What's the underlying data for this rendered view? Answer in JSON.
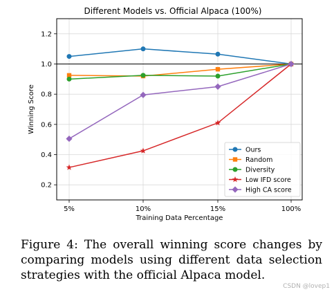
{
  "chart_data": {
    "type": "line",
    "title": "Different Models vs. Official Alpaca (100%)",
    "xlabel": "Training Data Percentage",
    "ylabel": "Winning Score",
    "categories": [
      "5%",
      "10%",
      "15%",
      "100%"
    ],
    "ylim": [
      0.1,
      1.3
    ],
    "yticks": [
      "0.2",
      "0.4",
      "0.6",
      "0.8",
      "1.0",
      "1.2"
    ],
    "yticks_values": [
      0.2,
      0.4,
      0.6,
      0.8,
      1.0,
      1.2
    ],
    "reference_line": 1.0,
    "grid": true,
    "legend_position": "lower-right",
    "series": [
      {
        "name": "Ours",
        "color": "#1f77b4",
        "marker": "circle",
        "values": [
          1.05,
          1.1,
          1.065,
          1.0
        ]
      },
      {
        "name": "Random",
        "color": "#ff7f0e",
        "marker": "square",
        "values": [
          0.925,
          0.92,
          0.965,
          1.0
        ]
      },
      {
        "name": "Diversity",
        "color": "#2ca02c",
        "marker": "circle",
        "values": [
          0.9,
          0.925,
          0.92,
          1.0
        ]
      },
      {
        "name": "Low IFD score",
        "color": "#d62728",
        "marker": "star",
        "values": [
          0.315,
          0.425,
          0.61,
          1.0
        ]
      },
      {
        "name": "High CA score",
        "color": "#9467bd",
        "marker": "diamond",
        "values": [
          0.505,
          0.795,
          0.85,
          1.0
        ]
      }
    ]
  },
  "caption": "Figure 4: The overall winning score changes by comparing models using different data selection strategies with the official Alpaca model.",
  "watermark": "CSDN @lovep1"
}
